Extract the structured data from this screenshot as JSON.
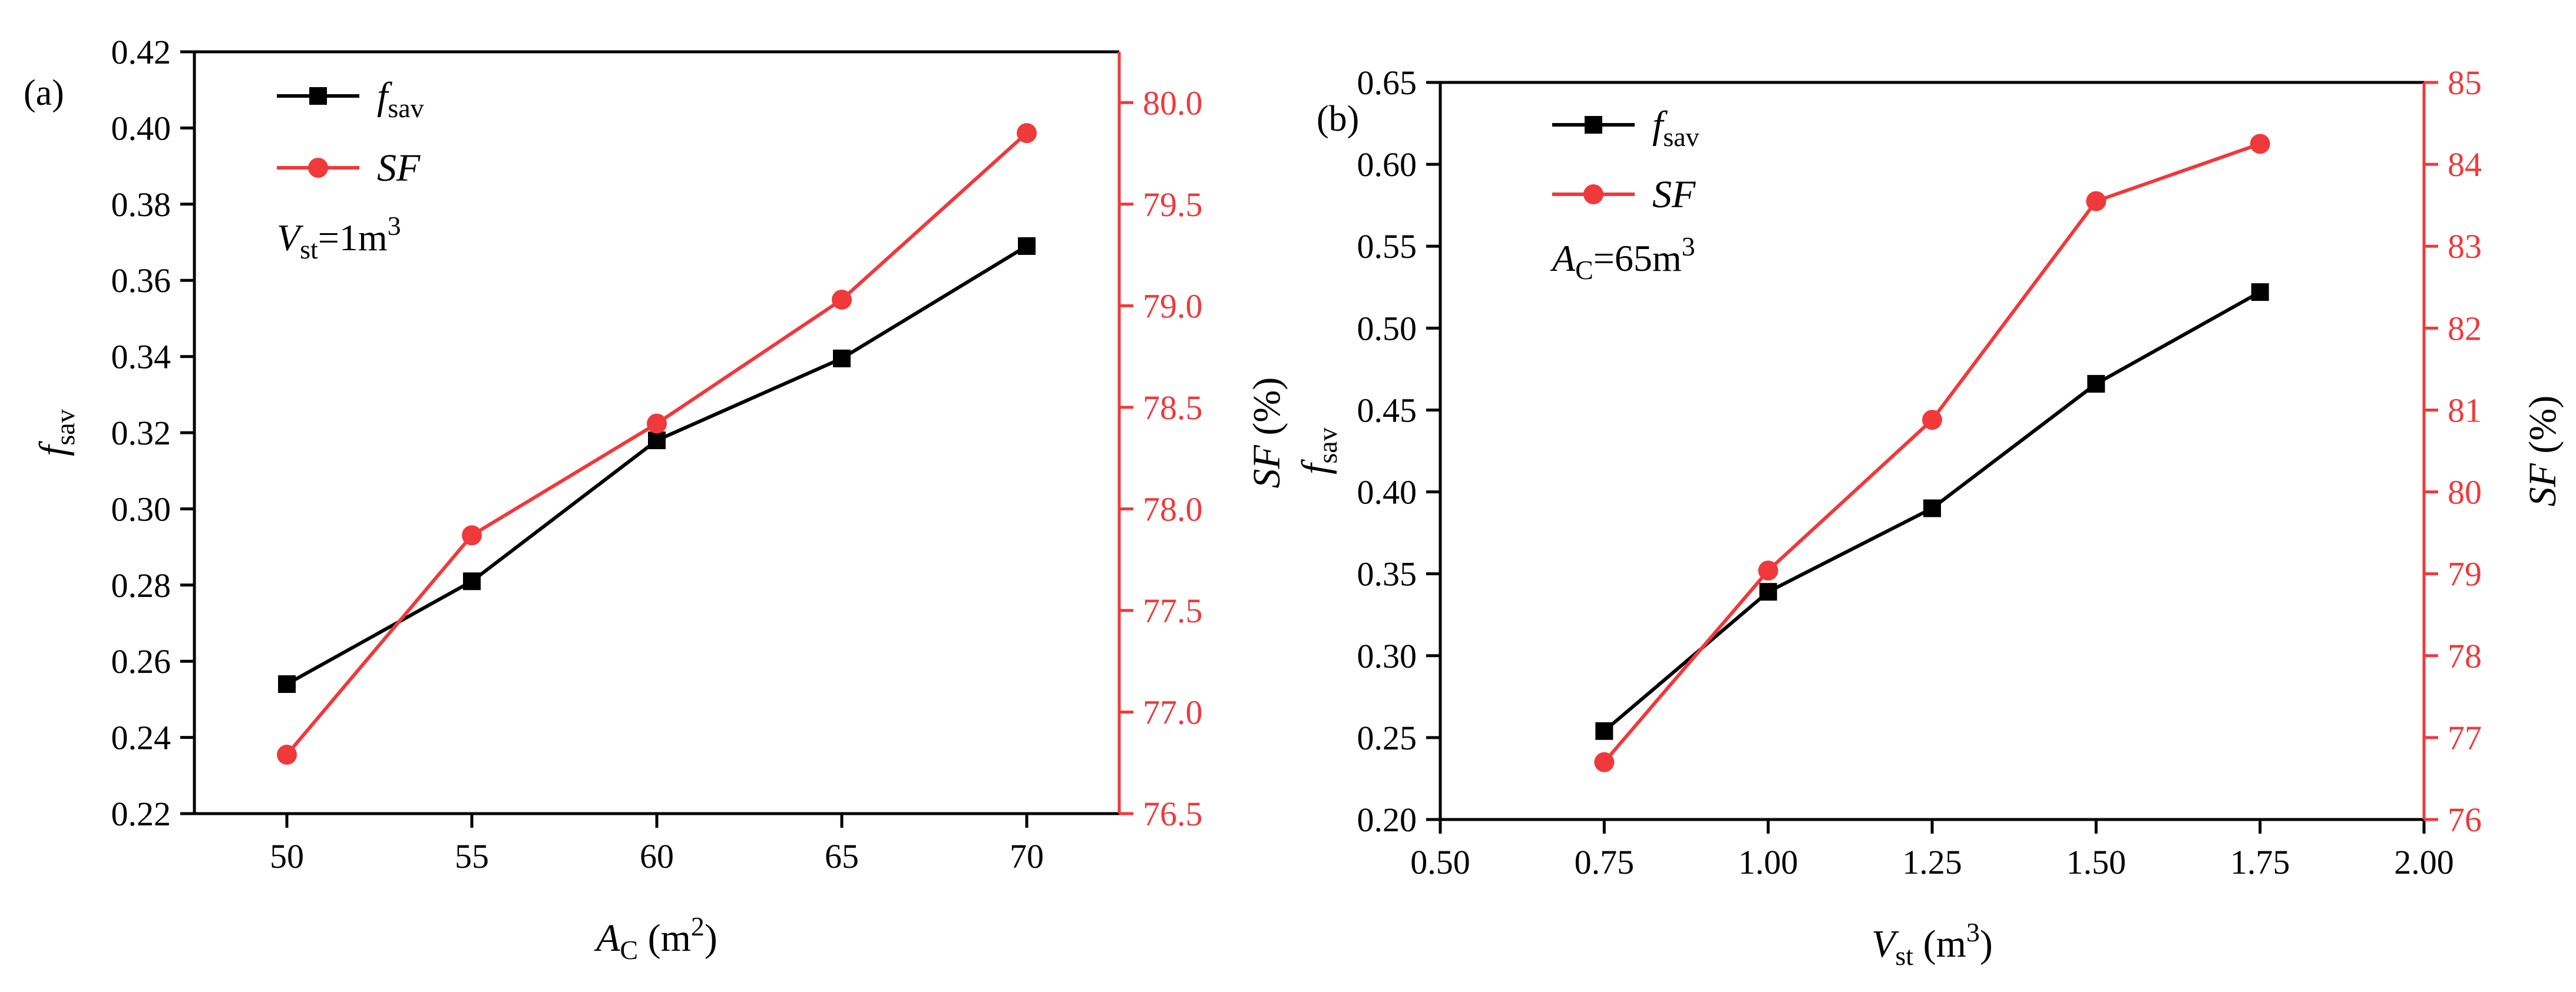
{
  "colors": {
    "left_series": "#000000",
    "right_series": "#f0393b",
    "right_axis": "#f0393b"
  },
  "chart_data": [
    {
      "type": "line",
      "panel_label": "(a)",
      "x": [
        50,
        55,
        60,
        65,
        70
      ],
      "xlim": [
        47.5,
        72.5
      ],
      "xticks": [
        50,
        55,
        60,
        65,
        70
      ],
      "xtick_labels": [
        "50",
        "55",
        "60",
        "65",
        "70"
      ],
      "xlabel": {
        "main": "A",
        "sub": "C",
        "rest": " (m",
        "sup": "2",
        "end": ")"
      },
      "ylabel_left": {
        "main": "f",
        "sub": "sav"
      },
      "ylim_left": [
        0.22,
        0.42
      ],
      "yticks_left": [
        0.22,
        0.24,
        0.26,
        0.28,
        0.3,
        0.32,
        0.34,
        0.36,
        0.38,
        0.4,
        0.42
      ],
      "ytick_labels_left": [
        "0.22",
        "0.24",
        "0.26",
        "0.28",
        "0.30",
        "0.32",
        "0.34",
        "0.36",
        "0.38",
        "0.40",
        "0.42"
      ],
      "ylabel_right": {
        "main": "SF",
        "rest": " (%)"
      },
      "ylim_right": [
        76.5,
        80.25
      ],
      "yticks_right": [
        76.5,
        77.0,
        77.5,
        78.0,
        78.5,
        79.0,
        79.5,
        80.0
      ],
      "ytick_labels_right": [
        "76.5",
        "77.0",
        "77.5",
        "78.0",
        "78.5",
        "79.0",
        "79.5",
        "80.0"
      ],
      "series": [
        {
          "name": "f_sav",
          "legend_main": "f",
          "legend_sub": "sav",
          "axis": "left",
          "marker": "square",
          "values": [
            0.254,
            0.281,
            0.318,
            0.3395,
            0.369
          ]
        },
        {
          "name": "SF",
          "legend_main": "SF",
          "axis": "right",
          "marker": "circle",
          "values": [
            76.79,
            77.87,
            78.42,
            79.03,
            79.85
          ]
        }
      ],
      "annotation": {
        "main": "V",
        "sub": "st",
        "rest": "=1m",
        "sup": "3"
      },
      "legend_position": "top-left"
    },
    {
      "type": "line",
      "panel_label": "(b)",
      "x": [
        0.75,
        1.0,
        1.25,
        1.5,
        1.75
      ],
      "xlim": [
        0.5,
        2.0
      ],
      "xticks": [
        0.5,
        0.75,
        1.0,
        1.25,
        1.5,
        1.75,
        2.0
      ],
      "xtick_labels": [
        "0.50",
        "0.75",
        "1.00",
        "1.25",
        "1.50",
        "1.75",
        "2.00"
      ],
      "xlabel": {
        "main": "V",
        "sub": "st",
        "rest": " (m",
        "sup": "3",
        "end": ")"
      },
      "ylabel_left": {
        "main": "f",
        "sub": "sav"
      },
      "ylim_left": [
        0.2,
        0.65
      ],
      "yticks_left": [
        0.2,
        0.25,
        0.3,
        0.35,
        0.4,
        0.45,
        0.5,
        0.55,
        0.6,
        0.65
      ],
      "ytick_labels_left": [
        "0.20",
        "0.25",
        "0.30",
        "0.35",
        "0.40",
        "0.45",
        "0.50",
        "0.55",
        "0.60",
        "0.65"
      ],
      "ylabel_right": {
        "main": "SF",
        "rest": " (%)"
      },
      "ylim_right": [
        76,
        85
      ],
      "yticks_right": [
        76,
        77,
        78,
        79,
        80,
        81,
        82,
        83,
        84,
        85
      ],
      "ytick_labels_right": [
        "76",
        "77",
        "78",
        "79",
        "80",
        "81",
        "82",
        "83",
        "84",
        "85"
      ],
      "series": [
        {
          "name": "f_sav",
          "legend_main": "f",
          "legend_sub": "sav",
          "axis": "left",
          "marker": "square",
          "values": [
            0.254,
            0.339,
            0.39,
            0.466,
            0.522
          ]
        },
        {
          "name": "SF",
          "legend_main": "SF",
          "axis": "right",
          "marker": "circle",
          "values": [
            76.7,
            79.04,
            80.88,
            83.55,
            84.25
          ]
        }
      ],
      "annotation": {
        "main": "A",
        "sub": "C",
        "rest": "=65m",
        "sup": "3"
      },
      "legend_position": "top-left"
    }
  ]
}
